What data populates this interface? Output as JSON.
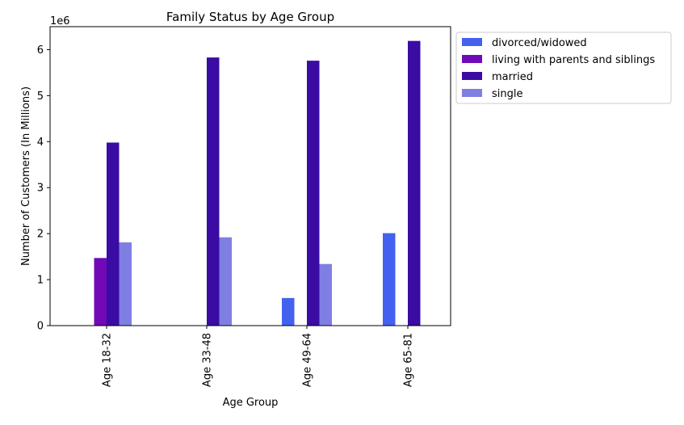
{
  "chart_data": {
    "type": "bar",
    "title": "Family Status by Age Group",
    "xlabel": "Age Group",
    "ylabel": "Number of Customers (In Millions)",
    "y_offset_label": "1e6",
    "categories": [
      "Age 18-32",
      "Age 33-48",
      "Age 49-64",
      "Age 65-81"
    ],
    "series": [
      {
        "name": "divorced/widowed",
        "color": "#4361ee",
        "values": [
          0,
          0,
          600000,
          2010000
        ]
      },
      {
        "name": "living with parents and siblings",
        "color": "#7209b7",
        "values": [
          1470000,
          0,
          0,
          0
        ]
      },
      {
        "name": "married",
        "color": "#3a0ca3",
        "values": [
          3980000,
          5830000,
          5760000,
          6190000
        ]
      },
      {
        "name": "single",
        "color": "#7f7fe3",
        "values": [
          1810000,
          1920000,
          1340000,
          0
        ]
      }
    ],
    "ylim": [
      0,
      6500000
    ],
    "yticks": [
      0,
      1000000,
      2000000,
      3000000,
      4000000,
      5000000,
      6000000
    ],
    "ytick_labels": [
      "0",
      "1",
      "2",
      "3",
      "4",
      "5",
      "6"
    ],
    "grid": false,
    "legend_position": "outside-top-right"
  }
}
